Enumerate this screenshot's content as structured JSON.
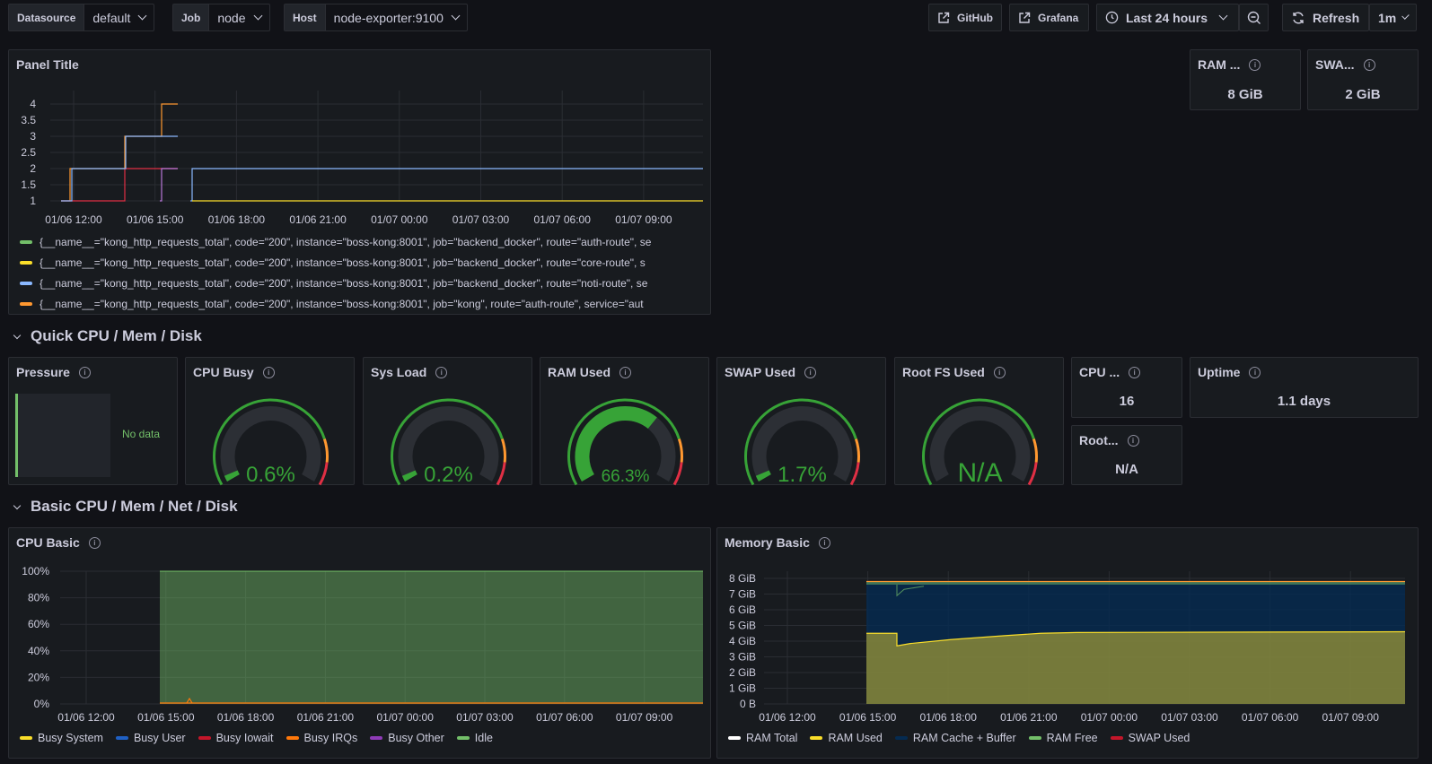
{
  "variables": [
    {
      "label": "Datasource",
      "value": "default"
    },
    {
      "label": "Job",
      "value": "node"
    },
    {
      "label": "Host",
      "value": "node-exporter:9100"
    }
  ],
  "toolbar": {
    "github": "GitHub",
    "grafana": "Grafana",
    "time_range": "Last 24 hours",
    "refresh": "Refresh",
    "interval": "1m"
  },
  "panel_title": {
    "title": "Panel Title",
    "y_ticks": [
      "4",
      "3.5",
      "3",
      "2.5",
      "2",
      "1.5",
      "1"
    ],
    "x_ticks": [
      "01/06 12:00",
      "01/06 15:00",
      "01/06 18:00",
      "01/06 21:00",
      "01/07 00:00",
      "01/07 03:00",
      "01/07 06:00",
      "01/07 09:00"
    ],
    "legend": [
      {
        "text": "{__name__=\"kong_http_requests_total\", code=\"200\", instance=\"boss-kong:8001\", job=\"backend_docker\", route=\"auth-route\", se",
        "color": "#73bf69"
      },
      {
        "text": "{__name__=\"kong_http_requests_total\", code=\"200\", instance=\"boss-kong:8001\", job=\"backend_docker\", route=\"core-route\", s",
        "color": "#fade2a"
      },
      {
        "text": "{__name__=\"kong_http_requests_total\", code=\"200\", instance=\"boss-kong:8001\", job=\"backend_docker\", route=\"noti-route\", se",
        "color": "#8ab8ff"
      },
      {
        "text": "{__name__=\"kong_http_requests_total\", code=\"200\", instance=\"boss-kong:8001\", job=\"kong\", route=\"auth-route\", service=\"aut",
        "color": "#ff9830"
      }
    ]
  },
  "ram_total": {
    "title": "RAM ...",
    "value": "8 GiB"
  },
  "swap_total": {
    "title": "SWA...",
    "value": "2 GiB"
  },
  "rows": {
    "quick": "Quick CPU / Mem / Disk",
    "basic": "Basic CPU / Mem / Net / Disk"
  },
  "quick": {
    "pressure": {
      "title": "Pressure",
      "no_data": "No data"
    },
    "cpu_busy": {
      "title": "CPU Busy",
      "value": "0.6%",
      "fraction": 0.006
    },
    "sys_load": {
      "title": "Sys Load",
      "value": "0.2%",
      "fraction": 0.002
    },
    "ram_used": {
      "title": "RAM Used",
      "value": "66.3%",
      "fraction": 0.663
    },
    "swap_used": {
      "title": "SWAP Used",
      "value": "1.7%",
      "fraction": 0.017
    },
    "root_fs": {
      "title": "Root FS Used",
      "value": "N/A",
      "fraction": 0
    },
    "cpu_cores": {
      "title": "CPU ...",
      "value": "16"
    },
    "uptime": {
      "title": "Uptime",
      "value": "1.1 days"
    },
    "rootfs_total": {
      "title": "Root...",
      "value": "N/A"
    }
  },
  "cpu_basic": {
    "title": "CPU Basic",
    "y_ticks": [
      "100%",
      "80%",
      "60%",
      "40%",
      "20%",
      "0%"
    ],
    "x_ticks": [
      "01/06 12:00",
      "01/06 15:00",
      "01/06 18:00",
      "01/06 21:00",
      "01/07 00:00",
      "01/07 03:00",
      "01/07 06:00",
      "01/07 09:00"
    ],
    "legend": [
      {
        "name": "Busy System",
        "color": "#fade2a"
      },
      {
        "name": "Busy User",
        "color": "#1f60c4"
      },
      {
        "name": "Busy Iowait",
        "color": "#c4162a"
      },
      {
        "name": "Busy IRQs",
        "color": "#ff780a"
      },
      {
        "name": "Busy Other",
        "color": "#8f3bb8"
      },
      {
        "name": "Idle",
        "color": "#73bf69"
      }
    ]
  },
  "memory_basic": {
    "title": "Memory Basic",
    "y_ticks": [
      "8 GiB",
      "7 GiB",
      "6 GiB",
      "5 GiB",
      "4 GiB",
      "3 GiB",
      "2 GiB",
      "1 GiB",
      "0 B"
    ],
    "x_ticks": [
      "01/06 12:00",
      "01/06 15:00",
      "01/06 18:00",
      "01/06 21:00",
      "01/07 00:00",
      "01/07 03:00",
      "01/07 06:00",
      "01/07 09:00"
    ],
    "legend": [
      {
        "name": "RAM Total",
        "color": "#ffffff"
      },
      {
        "name": "RAM Used",
        "color": "#fade2a"
      },
      {
        "name": "RAM Cache + Buffer",
        "color": "#052b51"
      },
      {
        "name": "RAM Free",
        "color": "#73bf69"
      },
      {
        "name": "SWAP Used",
        "color": "#c4162a"
      }
    ]
  },
  "colors": {
    "green": "#37a337",
    "orange": "#ff9830",
    "red": "#e02f44",
    "gauge_bg": "#2c2f35"
  }
}
